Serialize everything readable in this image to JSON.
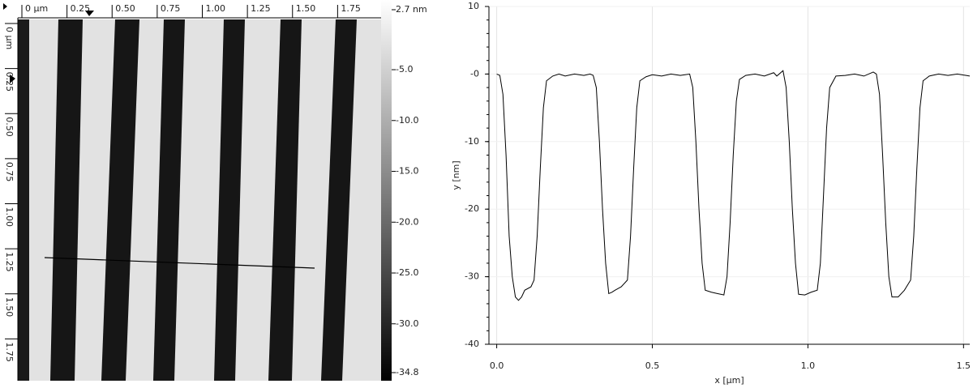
{
  "chart_data": [
    {
      "type": "image",
      "xlim": [
        0,
        2
      ],
      "ylim": [
        0,
        2
      ],
      "xticks": [
        {
          "value": 0,
          "label": "0 µm"
        },
        0.25,
        {
          "value": 0.5,
          "label": "0.50"
        },
        0.75,
        {
          "value": 1,
          "label": "1.00"
        },
        1.25,
        {
          "value": 1.5,
          "label": "1.50"
        },
        1.75
      ],
      "yticks": [
        {
          "value": 0,
          "label": "0 µm"
        },
        0.25,
        {
          "value": 0.5,
          "label": "0.50"
        },
        0.75,
        {
          "value": 1,
          "label": "1.00"
        },
        1.25,
        {
          "value": 1.5,
          "label": "1.50"
        },
        1.75
      ],
      "zlim": [
        2.7,
        -34.8
      ],
      "zticks": [
        {
          "value": 2.7,
          "label": "2.7 nm"
        },
        {
          "value": -5,
          "label": "-5.0"
        },
        {
          "value": -10,
          "label": "-10.0"
        },
        {
          "value": -15,
          "label": "-15.0"
        },
        {
          "value": -20,
          "label": "-20.0"
        },
        {
          "value": -25,
          "label": "-25.0"
        },
        {
          "value": -30,
          "label": "-30.0"
        },
        -34.8
      ]
    },
    {
      "type": "line",
      "xlabel": "x [µm]",
      "ylabel": "y [nm]",
      "color": "#000000",
      "grid": true,
      "xlim": [
        -0.025,
        1.52
      ],
      "ylim": [
        -40,
        10
      ],
      "xticks": [
        {
          "value": 0,
          "label": "0.0"
        },
        0.5,
        {
          "value": 1,
          "label": "1.0"
        },
        1.5
      ],
      "yticks": [
        10,
        {
          "value": 0,
          "label": "-0"
        },
        -10,
        -20,
        -30,
        -40
      ],
      "x": [
        0,
        0.01,
        0.02,
        0.03,
        0.04,
        0.05,
        0.06,
        0.07,
        0.08,
        0.09,
        0.11,
        0.12,
        0.13,
        0.14,
        0.15,
        0.16,
        0.18,
        0.2,
        0.22,
        0.25,
        0.28,
        0.3,
        0.31,
        0.32,
        0.33,
        0.34,
        0.35,
        0.36,
        0.37,
        0.38,
        0.4,
        0.42,
        0.43,
        0.44,
        0.45,
        0.46,
        0.48,
        0.5,
        0.53,
        0.56,
        0.59,
        0.62,
        0.63,
        0.64,
        0.65,
        0.66,
        0.67,
        0.69,
        0.71,
        0.73,
        0.74,
        0.75,
        0.76,
        0.77,
        0.78,
        0.8,
        0.83,
        0.86,
        0.89,
        0.9,
        0.92,
        0.93,
        0.94,
        0.95,
        0.96,
        0.97,
        0.99,
        1.01,
        1.03,
        1.04,
        1.05,
        1.06,
        1.07,
        1.09,
        1.12,
        1.15,
        1.18,
        1.21,
        1.22,
        1.23,
        1.24,
        1.25,
        1.26,
        1.27,
        1.29,
        1.31,
        1.33,
        1.34,
        1.35,
        1.36,
        1.37,
        1.39,
        1.42,
        1.45,
        1.48,
        1.52
      ],
      "values": [
        0,
        -0.2,
        -3,
        -12,
        -24,
        -30,
        -33,
        -33.5,
        -33,
        -32,
        -31.5,
        -30.5,
        -24,
        -14,
        -5,
        -1,
        -0.3,
        0,
        -0.3,
        0,
        -0.2,
        0,
        -0.2,
        -2,
        -10,
        -20,
        -28,
        -32.5,
        -32.3,
        -32,
        -31.5,
        -30.5,
        -24,
        -14,
        -5,
        -1,
        -0.4,
        -0.1,
        -0.3,
        0,
        -0.2,
        0,
        -2,
        -10,
        -20,
        -28,
        -32,
        -32.3,
        -32.5,
        -32.7,
        -30,
        -22,
        -12,
        -4,
        -0.8,
        -0.2,
        0,
        -0.3,
        0.2,
        -0.3,
        0.5,
        -2,
        -10,
        -20,
        -28,
        -32.6,
        -32.7,
        -32.3,
        -32,
        -28,
        -18,
        -8,
        -2,
        -0.3,
        -0.2,
        0,
        -0.3,
        0.3,
        0,
        -3,
        -12,
        -22,
        -30,
        -33,
        -33,
        -32,
        -30.5,
        -24,
        -14,
        -5,
        -1,
        -0.3,
        0,
        -0.2,
        0,
        -0.3
      ]
    }
  ]
}
